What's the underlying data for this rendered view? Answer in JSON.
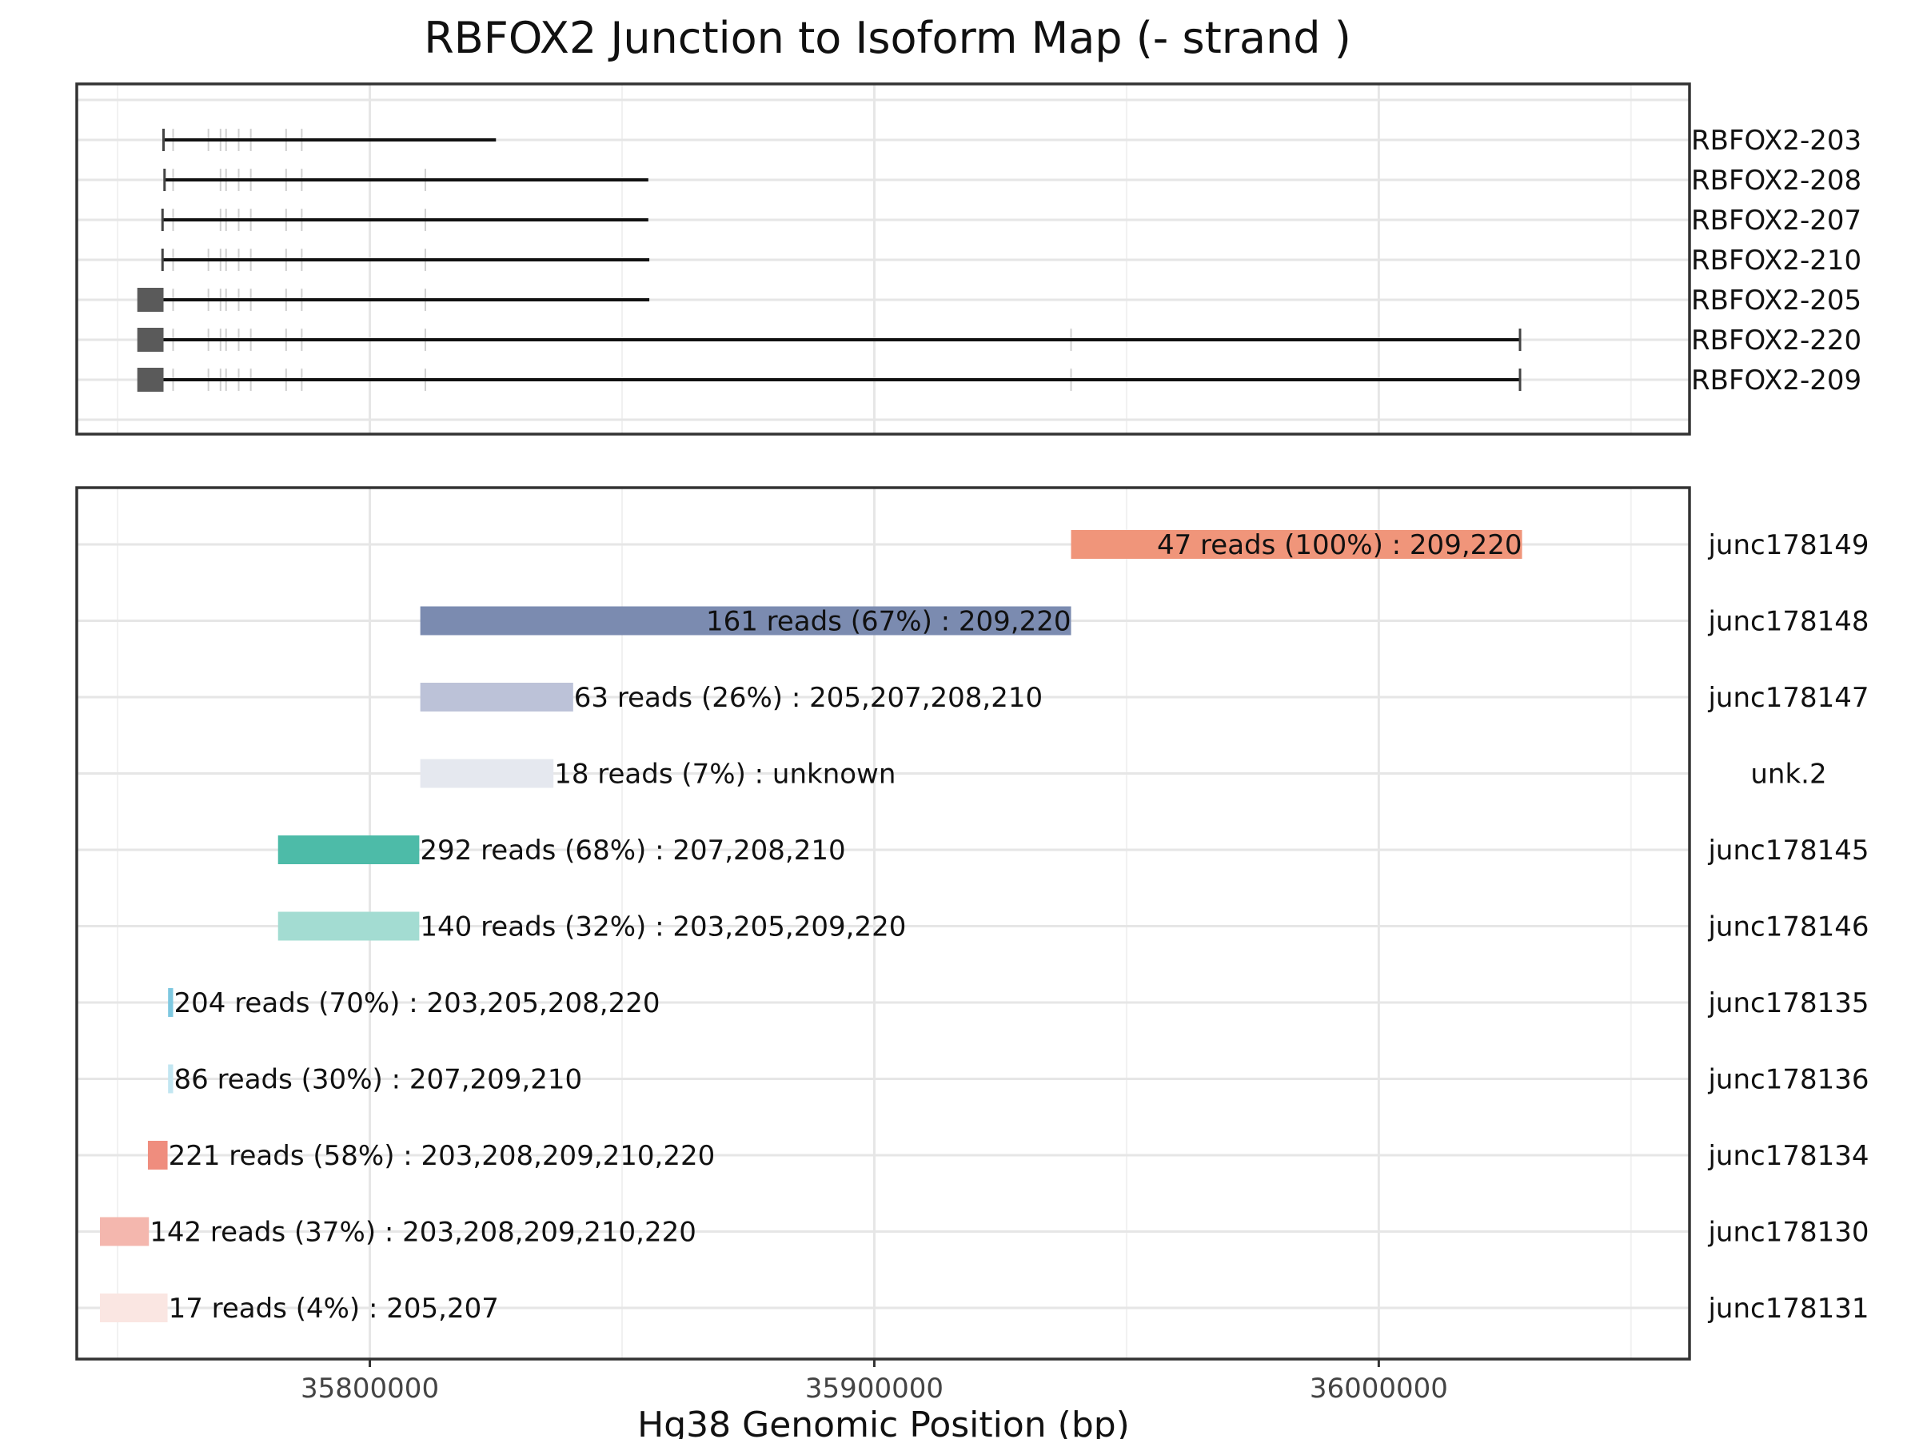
{
  "chart_data": {
    "type": "bar",
    "title": "RBFOX2 Junction to Isoform Map (- strand )",
    "xlabel": "Hg38 Genomic Position (bp)",
    "xlim": [
      35741900,
      36061600
    ],
    "x_ticks": [
      35800000,
      35900000,
      36000000
    ],
    "x_tick_labels": [
      "35800000",
      "35900000",
      "36000000"
    ],
    "isoforms": [
      {
        "name": "RBFOX2-203",
        "start": 35759100,
        "end": 35825000,
        "exons": [
          35759100,
          35761000,
          35768000,
          35770400,
          35771500,
          35774000,
          35776400,
          35783400,
          35786500
        ],
        "block": null,
        "start_cap": true,
        "end_cap": false
      },
      {
        "name": "RBFOX2-208",
        "start": 35759300,
        "end": 35855200,
        "exons": [
          35759300,
          35761000,
          35770400,
          35771500,
          35774000,
          35776400,
          35783400,
          35786500,
          35811000
        ],
        "block": null,
        "start_cap": true,
        "end_cap": false
      },
      {
        "name": "RBFOX2-207",
        "start": 35758900,
        "end": 35855200,
        "exons": [
          35758900,
          35761000,
          35770400,
          35771500,
          35774000,
          35776400,
          35783400,
          35786500,
          35811000
        ],
        "block": null,
        "start_cap": true,
        "end_cap": false
      },
      {
        "name": "RBFOX2-210",
        "start": 35758900,
        "end": 35855400,
        "exons": [
          35758900,
          35761000,
          35768000,
          35770400,
          35771500,
          35774000,
          35776400,
          35783400,
          35786500,
          35811000
        ],
        "block": null,
        "start_cap": true,
        "end_cap": false
      },
      {
        "name": "RBFOX2-205",
        "start": 35759100,
        "end": 35855400,
        "exons": [
          35761000,
          35768000,
          35770400,
          35771500,
          35774000,
          35776400,
          35783400,
          35786500,
          35811000
        ],
        "block": [
          35753900,
          35759100
        ],
        "start_cap": false,
        "end_cap": false
      },
      {
        "name": "RBFOX2-220",
        "start": 35759100,
        "end": 36028000,
        "exons": [
          35761000,
          35768000,
          35770400,
          35771500,
          35774000,
          35776400,
          35783400,
          35786500,
          35811000,
          35939000
        ],
        "block": [
          35753900,
          35759100
        ],
        "start_cap": false,
        "end_cap": true
      },
      {
        "name": "RBFOX2-209",
        "start": 35759100,
        "end": 36028000,
        "exons": [
          35761000,
          35768000,
          35770400,
          35771500,
          35774000,
          35776400,
          35783400,
          35786500,
          35811000,
          35939000
        ],
        "block": [
          35753900,
          35759100
        ],
        "start_cap": false,
        "end_cap": true
      }
    ],
    "junctions": [
      {
        "id": "junc178149",
        "start": 35939000,
        "end": 36028400,
        "label": "47 reads (100%) : 209,220",
        "color": "#f0957a",
        "label_align": "end"
      },
      {
        "id": "junc178148",
        "start": 35810000,
        "end": 35939000,
        "label": "161 reads (67%) : 209,220",
        "color": "#7b8bb0",
        "label_align": "end"
      },
      {
        "id": "junc178147",
        "start": 35810000,
        "end": 35840300,
        "label": "63 reads (26%) : 205,207,208,210",
        "color": "#bcc2d8",
        "label_align": "start"
      },
      {
        "id": "unk.2",
        "start": 35810000,
        "end": 35836400,
        "label": "18 reads (7%) : unknown",
        "color": "#e5e8ef",
        "label_align": "start"
      },
      {
        "id": "junc178145",
        "start": 35781800,
        "end": 35809800,
        "label": "292 reads (68%) : 207,208,210",
        "color": "#4dbba8",
        "label_align": "start"
      },
      {
        "id": "junc178146",
        "start": 35781800,
        "end": 35809800,
        "label": "140 reads (32%) : 203,205,209,220",
        "color": "#a3dcd2",
        "label_align": "start"
      },
      {
        "id": "junc178135",
        "start": 35760000,
        "end": 35761000,
        "label": "204 reads (70%) : 203,205,208,220",
        "color": "#7ec8e0",
        "label_align": "start"
      },
      {
        "id": "junc178136",
        "start": 35760000,
        "end": 35761000,
        "label": "86 reads (30%) : 207,209,210",
        "color": "#c2e6f1",
        "label_align": "start"
      },
      {
        "id": "junc178134",
        "start": 35756000,
        "end": 35759900,
        "label": "221 reads (58%) : 203,208,209,210,220",
        "color": "#ef8d7e",
        "label_align": "start"
      },
      {
        "id": "junc178130",
        "start": 35746500,
        "end": 35756200,
        "label": "142 reads (37%) : 203,208,209,210,220",
        "color": "#f4b7ae",
        "label_align": "start"
      },
      {
        "id": "junc178131",
        "start": 35746500,
        "end": 35759900,
        "label": "17 reads (4%) : 205,207",
        "color": "#fae6e2",
        "label_align": "start"
      }
    ]
  }
}
